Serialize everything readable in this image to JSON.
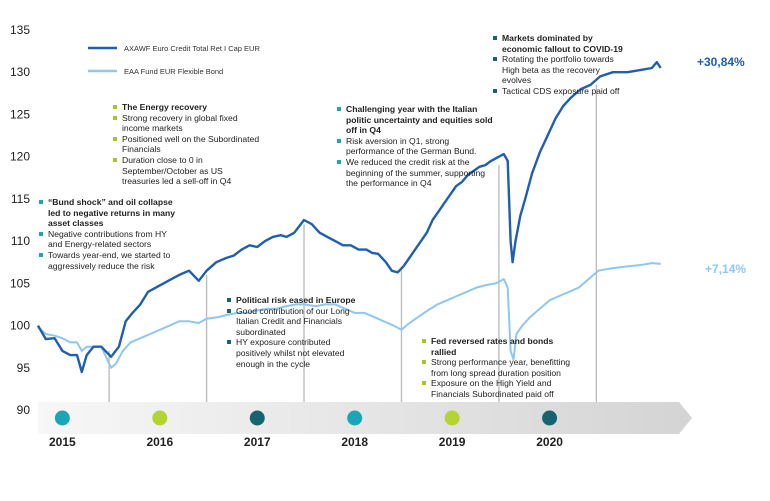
{
  "chart_data": {
    "type": "line",
    "ylim": [
      90,
      135
    ],
    "yticks": [
      90,
      95,
      100,
      105,
      110,
      115,
      120,
      125,
      130,
      135
    ],
    "xlim": [
      2014.55,
      2021.2
    ],
    "years": [
      "2015",
      "2016",
      "2017",
      "2018",
      "2019",
      "2020"
    ],
    "year_markers": [
      {
        "year": "2015",
        "x": 2014.8,
        "color": "#1aa6b7"
      },
      {
        "year": "2016",
        "x": 2015.8,
        "color": "#b6d334"
      },
      {
        "year": "2017",
        "x": 2016.8,
        "color": "#15646f"
      },
      {
        "year": "2018",
        "x": 2017.8,
        "color": "#1aa6b7"
      },
      {
        "year": "2019",
        "x": 2018.8,
        "color": "#b6d334"
      },
      {
        "year": "2020",
        "x": 2019.8,
        "color": "#15646f"
      }
    ],
    "dividers": [
      {
        "x": 2015.28,
        "y": 97
      },
      {
        "x": 2016.28,
        "y": 106
      },
      {
        "x": 2017.28,
        "y": 112
      },
      {
        "x": 2018.28,
        "y": 107
      },
      {
        "x": 2019.28,
        "y": 119
      },
      {
        "x": 2020.28,
        "y": 128.5
      }
    ],
    "series": [
      {
        "name": "AXAWF Euro Credit Total Ret I Cap EUR",
        "color": "#1f5fae",
        "end_label": "+30,84%",
        "points": [
          [
            2014.55,
            100
          ],
          [
            2014.63,
            98.4
          ],
          [
            2014.72,
            98.5
          ],
          [
            2014.8,
            97
          ],
          [
            2014.88,
            96.5
          ],
          [
            2014.95,
            96.5
          ],
          [
            2015.0,
            94.5
          ],
          [
            2015.05,
            96.5
          ],
          [
            2015.12,
            97.5
          ],
          [
            2015.2,
            97.5
          ],
          [
            2015.3,
            96.3
          ],
          [
            2015.38,
            97.5
          ],
          [
            2015.45,
            100.5
          ],
          [
            2015.52,
            101.5
          ],
          [
            2015.6,
            102.5
          ],
          [
            2015.68,
            104
          ],
          [
            2015.76,
            104.5
          ],
          [
            2015.84,
            105
          ],
          [
            2015.92,
            105.5
          ],
          [
            2016.0,
            106
          ],
          [
            2016.1,
            106.5
          ],
          [
            2016.2,
            105.3
          ],
          [
            2016.28,
            106.5
          ],
          [
            2016.38,
            107.5
          ],
          [
            2016.48,
            108
          ],
          [
            2016.56,
            108.3
          ],
          [
            2016.64,
            109
          ],
          [
            2016.72,
            109.5
          ],
          [
            2016.8,
            109.3
          ],
          [
            2016.88,
            110
          ],
          [
            2016.96,
            110.5
          ],
          [
            2017.04,
            110.7
          ],
          [
            2017.1,
            110.5
          ],
          [
            2017.18,
            111
          ],
          [
            2017.28,
            112.5
          ],
          [
            2017.36,
            112
          ],
          [
            2017.44,
            111
          ],
          [
            2017.52,
            110.5
          ],
          [
            2017.6,
            110
          ],
          [
            2017.68,
            109.5
          ],
          [
            2017.76,
            109.5
          ],
          [
            2017.84,
            109
          ],
          [
            2017.92,
            109
          ],
          [
            2017.98,
            108.6
          ],
          [
            2018.04,
            108.5
          ],
          [
            2018.12,
            107.5
          ],
          [
            2018.18,
            106.5
          ],
          [
            2018.24,
            106.3
          ],
          [
            2018.3,
            107
          ],
          [
            2018.36,
            108
          ],
          [
            2018.42,
            109
          ],
          [
            2018.48,
            110
          ],
          [
            2018.54,
            111
          ],
          [
            2018.6,
            112.5
          ],
          [
            2018.66,
            113.5
          ],
          [
            2018.72,
            114.5
          ],
          [
            2018.78,
            115.5
          ],
          [
            2018.84,
            116.5
          ],
          [
            2018.9,
            117
          ],
          [
            2018.96,
            117.8
          ],
          [
            2019.02,
            118.3
          ],
          [
            2019.08,
            118.8
          ],
          [
            2019.14,
            119
          ],
          [
            2019.2,
            119.5
          ],
          [
            2019.28,
            120
          ],
          [
            2019.33,
            120.3
          ],
          [
            2019.37,
            119.5
          ],
          [
            2019.4,
            110
          ],
          [
            2019.42,
            107.5
          ],
          [
            2019.45,
            110
          ],
          [
            2019.5,
            113
          ],
          [
            2019.55,
            115
          ],
          [
            2019.62,
            118
          ],
          [
            2019.7,
            120.5
          ],
          [
            2019.78,
            122.5
          ],
          [
            2019.86,
            124.5
          ],
          [
            2019.94,
            126
          ],
          [
            2020.02,
            127
          ],
          [
            2020.12,
            128
          ],
          [
            2020.22,
            128.5
          ],
          [
            2020.32,
            129.5
          ],
          [
            2020.45,
            130
          ],
          [
            2020.6,
            130
          ],
          [
            2020.75,
            130.3
          ],
          [
            2020.85,
            130.5
          ],
          [
            2020.9,
            131.2
          ],
          [
            2020.94,
            130.5
          ]
        ]
      },
      {
        "name": "EAA Fund EUR Flexible Bond",
        "color": "#8ec7f1",
        "end_label": "+7,14%",
        "points": [
          [
            2014.55,
            99.8
          ],
          [
            2014.63,
            99
          ],
          [
            2014.72,
            98.8
          ],
          [
            2014.8,
            98.5
          ],
          [
            2014.88,
            98
          ],
          [
            2014.95,
            98
          ],
          [
            2015.0,
            97
          ],
          [
            2015.05,
            97.5
          ],
          [
            2015.12,
            97.5
          ],
          [
            2015.2,
            97.5
          ],
          [
            2015.3,
            95
          ],
          [
            2015.35,
            95.5
          ],
          [
            2015.42,
            97
          ],
          [
            2015.5,
            98
          ],
          [
            2015.6,
            98.5
          ],
          [
            2015.7,
            99
          ],
          [
            2015.8,
            99.5
          ],
          [
            2015.9,
            100
          ],
          [
            2016.0,
            100.5
          ],
          [
            2016.1,
            100.5
          ],
          [
            2016.2,
            100.3
          ],
          [
            2016.28,
            100.8
          ],
          [
            2016.4,
            101
          ],
          [
            2016.5,
            101.3
          ],
          [
            2016.6,
            101.5
          ],
          [
            2016.7,
            101.5
          ],
          [
            2016.8,
            101.8
          ],
          [
            2016.9,
            102
          ],
          [
            2017.0,
            102
          ],
          [
            2017.1,
            102.3
          ],
          [
            2017.2,
            102.5
          ],
          [
            2017.28,
            102.5
          ],
          [
            2017.4,
            102.3
          ],
          [
            2017.5,
            102.5
          ],
          [
            2017.6,
            102.5
          ],
          [
            2017.7,
            102
          ],
          [
            2017.8,
            101.5
          ],
          [
            2017.9,
            101.5
          ],
          [
            2018.0,
            101
          ],
          [
            2018.1,
            100.5
          ],
          [
            2018.2,
            100
          ],
          [
            2018.28,
            99.5
          ],
          [
            2018.35,
            100.2
          ],
          [
            2018.45,
            101
          ],
          [
            2018.55,
            101.8
          ],
          [
            2018.65,
            102.5
          ],
          [
            2018.75,
            103
          ],
          [
            2018.85,
            103.5
          ],
          [
            2018.95,
            104
          ],
          [
            2019.05,
            104.5
          ],
          [
            2019.15,
            104.8
          ],
          [
            2019.25,
            105
          ],
          [
            2019.33,
            105.5
          ],
          [
            2019.37,
            104.5
          ],
          [
            2019.4,
            97
          ],
          [
            2019.43,
            96
          ],
          [
            2019.46,
            99
          ],
          [
            2019.52,
            100
          ],
          [
            2019.6,
            101
          ],
          [
            2019.7,
            102
          ],
          [
            2019.8,
            103
          ],
          [
            2019.9,
            103.5
          ],
          [
            2020.0,
            104
          ],
          [
            2020.1,
            104.5
          ],
          [
            2020.2,
            105.5
          ],
          [
            2020.3,
            106.5
          ],
          [
            2020.45,
            106.8
          ],
          [
            2020.6,
            107
          ],
          [
            2020.75,
            107.2
          ],
          [
            2020.85,
            107.4
          ],
          [
            2020.94,
            107.3
          ]
        ]
      }
    ],
    "annotations": [
      {
        "color": "teal",
        "title": "“Bund shock” and oil collapse led to negative returns in many asset classes",
        "bullets": [
          "Negative contributions from HY and Energy-related sectors",
          "Towards year-end, we started to aggressively reduce the risk"
        ]
      },
      {
        "color": "lime",
        "title": "The Energy recovery",
        "bullets": [
          "Strong recovery in global fixed income markets",
          "Positioned well on the Subordinated Financials",
          "Duration close to 0 in September/October as US treasuries led a sell-off in Q4"
        ]
      },
      {
        "color": "dark",
        "title": "Political risk eased in Europe",
        "bullets": [
          "Good contribution of our Long Italian Credit and Financials subordinated",
          "HY exposure contributed positively whilst not elevated enough in the cycle"
        ]
      },
      {
        "color": "teal",
        "title": "Challenging year with the Italian politic uncertainty and equities sold off in Q4",
        "bullets": [
          "Risk aversion in Q1, strong performance of the German Bund.",
          "We reduced the credit risk at the beginning of  the summer, supporting the performance in Q4"
        ]
      },
      {
        "color": "lime",
        "title": "Fed reversed rates and bonds rallied",
        "bullets": [
          "Strong performance year, benefitting from long  spread duration position",
          "Exposure on the High Yield and Financials Subordinated paid off"
        ]
      },
      {
        "color": "dark",
        "title": "Markets dominated by economic fallout to COVID-19",
        "bullets": [
          "Rotating the portfolio towards High beta as the recovery evolves",
          "Tactical CDS exposure paid off"
        ]
      }
    ]
  }
}
